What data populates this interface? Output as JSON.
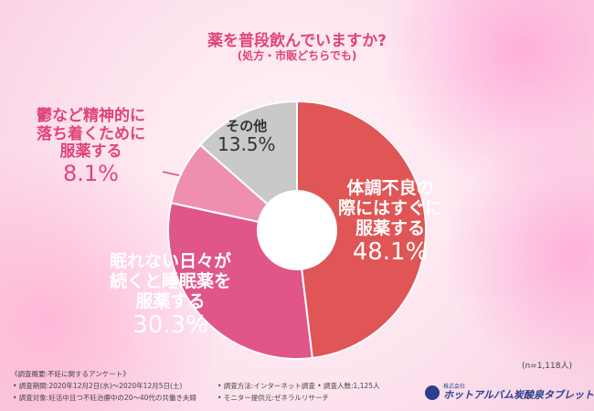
{
  "header": {
    "question": "薬を普段飲んでいますか?",
    "note": "(処方・市販どちらでも)"
  },
  "chart_data": {
    "type": "pie",
    "title": "薬を普段飲んでいますか?",
    "subtitle": "(処方・市販どちらでも)",
    "donut": true,
    "slices": [
      {
        "label": "体調不良の際にはすぐに服薬する",
        "value": 48.1,
        "value_label": "48.1%",
        "color": "#e05555"
      },
      {
        "label": "眠れない日々が続くと睡眠薬を服薬する",
        "value": 30.3,
        "value_label": "30.3%",
        "color": "#e0558a"
      },
      {
        "label": "鬱など精神的に落ち着くために服薬する",
        "value": 8.1,
        "value_label": "8.1%",
        "color": "#ef8fb0"
      },
      {
        "label": "その他",
        "value": 13.5,
        "value_label": "13.5%",
        "color": "#c9c9c9"
      }
    ],
    "start_angle_deg": 0,
    "direction": "clockwise"
  },
  "labels": {
    "main_l1": "体調不良の",
    "main_l2": "際にはすぐに",
    "main_l3": "服薬する",
    "main_pct": "48.1%",
    "sleep_l1": "眠れない日々が",
    "sleep_l2": "続くと睡眠薬を",
    "sleep_l3": "服薬する",
    "sleep_pct": "30.3%",
    "other_l1": "その他",
    "other_pct": "13.5%",
    "depr_l1": "鬱など精神的に",
    "depr_l2": "落ち着くために",
    "depr_l3": "服薬する",
    "depr_pct": "8.1%"
  },
  "sample": "(n=1,118人)",
  "footnote": {
    "overview": "《調査概要:不妊に関するアンケート》",
    "period": "• 調査期間:2020年12月2日(水)〜2020年12月5日(土)",
    "target": "• 調査対象:妊活中且つ不妊治療中の20〜40代の共働き夫婦",
    "method": "• 調査方法:インターネット調査 • 調査人数:1,125人",
    "provider": "• モニター提供元:ゼネラルリサーチ"
  },
  "logo": {
    "company": "株式会社",
    "name": "ホットアルバム炭酸泉タブレット"
  }
}
